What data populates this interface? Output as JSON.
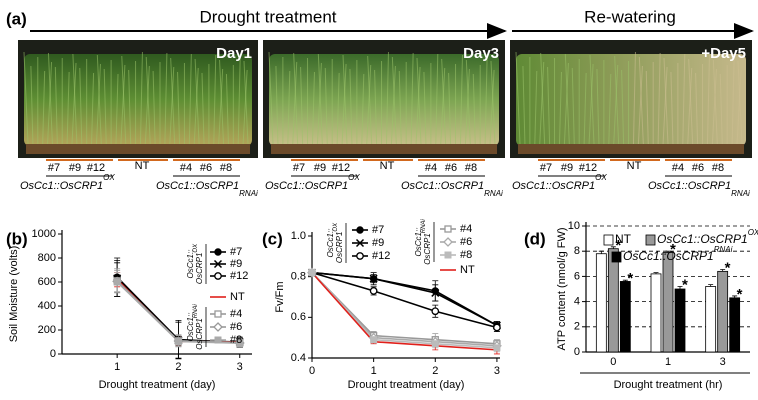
{
  "panel_a": {
    "label": "(a)",
    "drought": "Drought treatment",
    "rewatering": "Re-watering",
    "photos": [
      {
        "day": "Day1",
        "ox_lines": [
          "#7",
          "#9",
          "#12"
        ],
        "nt": "NT",
        "rnai_lines": [
          "#4",
          "#6",
          "#8"
        ],
        "ox_genotype": "OsCc1::OsCRP1",
        "ox_sup": "OX",
        "rnai_genotype": "OsCc1::OsCRP1",
        "rnai_sup": "RNAi"
      },
      {
        "day": "Day3",
        "ox_lines": [
          "#7",
          "#9",
          "#12"
        ],
        "nt": "NT",
        "rnai_lines": [
          "#4",
          "#6",
          "#8"
        ],
        "ox_genotype": "OsCc1::OsCRP1",
        "ox_sup": "OX",
        "rnai_genotype": "OsCc1::OsCRP1",
        "rnai_sup": "RNAi"
      },
      {
        "day": "+Day5",
        "ox_lines": [
          "#7",
          "#9",
          "#12"
        ],
        "nt": "NT",
        "rnai_lines": [
          "#4",
          "#6",
          "#8"
        ],
        "ox_genotype": "OsCc1::OsCRP1",
        "ox_sup": "OX",
        "rnai_genotype": "OsCc1::OsCRP1",
        "rnai_sup": "RNAi"
      }
    ]
  },
  "chart_data": [
    {
      "type": "line",
      "panel": "(b)",
      "xlabel": "Drought treatment (day)",
      "ylabel": "Soil Moisture (volts)",
      "x": [
        1,
        2,
        3
      ],
      "xlim": [
        0.1,
        3.2
      ],
      "xticks": [
        1,
        2,
        3
      ],
      "ylim": [
        0,
        1000
      ],
      "yticks": [
        0,
        200,
        400,
        600,
        800,
        1000
      ],
      "legend_groups": [
        {
          "line1": "OsCc1::",
          "line2": "OsCRP1",
          "sup": "OX"
        },
        {
          "line1": "OsCc1::",
          "line2": "OsCRP1",
          "sup": "RNAi"
        }
      ],
      "series": [
        {
          "name": "#7",
          "color": "#000000",
          "marker": "circle-filled",
          "group": 0,
          "values": [
            640,
            120,
            95
          ],
          "errors": [
            160,
            160,
            40
          ]
        },
        {
          "name": "#9",
          "color": "#000000",
          "marker": "x",
          "group": 0,
          "values": [
            630,
            115,
            100
          ],
          "errors": [
            150,
            150,
            40
          ]
        },
        {
          "name": "#12",
          "color": "#000000",
          "marker": "circle-open",
          "group": 0,
          "values": [
            620,
            110,
            95
          ],
          "errors": [
            140,
            40,
            40
          ]
        },
        {
          "name": "NT",
          "color": "#e0201b",
          "marker": "none",
          "values": [
            620,
            105,
            100
          ],
          "errors": [
            60,
            40,
            20
          ]
        },
        {
          "name": "#4",
          "color": "#999999",
          "marker": "square-open",
          "group": 1,
          "values": [
            610,
            110,
            95
          ],
          "errors": [
            100,
            50,
            40
          ]
        },
        {
          "name": "#6",
          "color": "#999999",
          "marker": "diamond-open",
          "group": 1,
          "values": [
            605,
            108,
            92
          ],
          "errors": [
            90,
            45,
            35
          ]
        },
        {
          "name": "#8",
          "color": "#aaaaaa",
          "marker": "square-filled",
          "group": 1,
          "values": [
            600,
            105,
            90
          ],
          "errors": [
            80,
            40,
            30
          ]
        }
      ]
    },
    {
      "type": "line",
      "panel": "(c)",
      "xlabel": "Drought treatment (day)",
      "ylabel": "Fv/Fm",
      "x": [
        0,
        1,
        2,
        3
      ],
      "xlim": [
        0,
        3.05
      ],
      "xticks": [
        0,
        1,
        2,
        3
      ],
      "ylim": [
        0.4,
        1
      ],
      "yticks": [
        0.4,
        0.6,
        0.8,
        {
          "value": 1,
          "label": "1.0"
        }
      ],
      "legend_groups": [
        {
          "line1": "OsCc1::",
          "line2": "OsCRP1",
          "sup": "OX"
        },
        {
          "line1": "OsCc1::",
          "line2": "OsCRP1",
          "sup": "RNAi"
        }
      ],
      "series": [
        {
          "name": "#7",
          "color": "#000000",
          "marker": "circle-filled",
          "group": 0,
          "values": [
            0.82,
            0.79,
            0.73,
            0.56
          ],
          "errors": [
            0.01,
            0.03,
            0.05,
            0.02
          ]
        },
        {
          "name": "#9",
          "color": "#000000",
          "marker": "x",
          "group": 0,
          "values": [
            0.82,
            0.79,
            0.72,
            0.56
          ],
          "errors": [
            0.01,
            0.02,
            0.04,
            0.02
          ]
        },
        {
          "name": "#12",
          "color": "#000000",
          "marker": "circle-open",
          "group": 0,
          "values": [
            0.82,
            0.73,
            0.63,
            0.55
          ],
          "errors": [
            0.01,
            0.02,
            0.03,
            0.02
          ]
        },
        {
          "name": "#4",
          "color": "#999999",
          "marker": "square-open",
          "group": 1,
          "values": [
            0.82,
            0.51,
            0.49,
            0.47
          ],
          "errors": [
            0.01,
            0.02,
            0.03,
            0.02
          ]
        },
        {
          "name": "#6",
          "color": "#aaaaaa",
          "marker": "diamond-open",
          "group": 1,
          "values": [
            0.82,
            0.5,
            0.48,
            0.46
          ],
          "errors": [
            0.01,
            0.02,
            0.02,
            0.02
          ]
        },
        {
          "name": "#8",
          "color": "#bbbbbb",
          "marker": "square-filled",
          "group": 1,
          "values": [
            0.82,
            0.49,
            0.47,
            0.45
          ],
          "errors": [
            0.01,
            0.02,
            0.02,
            0.02
          ]
        },
        {
          "name": "NT",
          "color": "#e0201b",
          "marker": "none",
          "values": [
            0.82,
            0.48,
            0.46,
            0.44
          ],
          "errors": [
            0.01,
            0.01,
            0.02,
            0.02
          ]
        }
      ]
    },
    {
      "type": "bar",
      "panel": "(d)",
      "xlabel": "Drought treatment (hr)",
      "ylabel": "ATP content (nmol/g FW)",
      "categories": [
        "0",
        "1",
        "3"
      ],
      "ylim": [
        0,
        10
      ],
      "yticks": [
        0,
        2,
        4,
        6,
        8,
        10
      ],
      "grid": "dashed",
      "series": [
        {
          "name": "NT",
          "color": "#ffffff",
          "values": [
            7.8,
            6.2,
            5.2
          ],
          "errors": [
            0.2,
            0.1,
            0.15
          ]
        },
        {
          "name": "OsCc1::OsCRP1",
          "name_sup": "OX",
          "color": "#999999",
          "values": [
            8.2,
            7.9,
            6.4
          ],
          "errors": [
            0.15,
            0.1,
            0.15
          ],
          "marks": [
            "*",
            "*",
            "*"
          ]
        },
        {
          "name": "OsCc1::OsCRP1",
          "name_sup": "RNAi",
          "color": "#000000",
          "values": [
            5.6,
            5.0,
            4.3
          ],
          "errors": [
            0.1,
            0.2,
            0.15
          ],
          "marks": [
            "*",
            "*",
            "*"
          ]
        }
      ]
    }
  ]
}
